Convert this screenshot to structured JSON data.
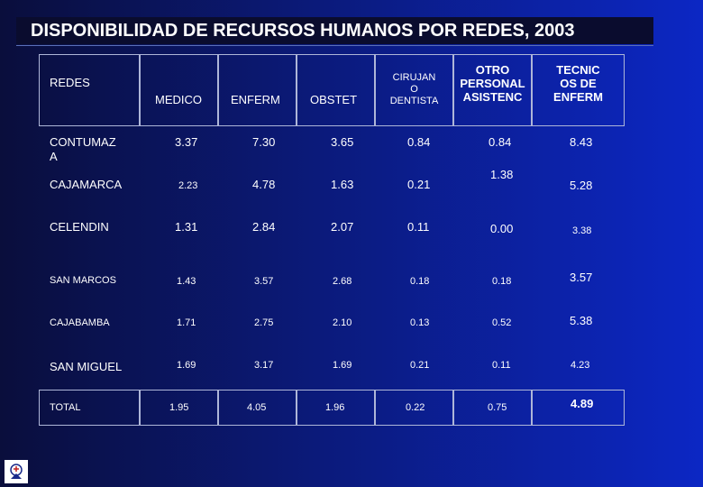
{
  "title": "DISPONIBILIDAD DE RECURSOS HUMANOS POR REDES, 2003",
  "headers": {
    "redes": "REDES",
    "medico": "MEDICO",
    "enferm": "ENFERM",
    "obstet": "OBSTET",
    "cirujan": [
      "CIRUJAN",
      "O",
      "DENTISTA"
    ],
    "otro": [
      "OTRO",
      "PERSONAL",
      "ASISTENC"
    ],
    "tecnic": [
      "TECNIC",
      "OS DE",
      "ENFERM"
    ]
  },
  "rows": [
    {
      "name": "CONTUMAZ A",
      "vals": [
        "3.37",
        "7.30",
        "3.65",
        "0.84",
        "0.84",
        "8.43"
      ]
    },
    {
      "name": "CAJAMARCA",
      "vals": [
        "2.23",
        "4.78",
        "1.63",
        "0.21",
        "1.38",
        "5.28"
      ]
    },
    {
      "name": "CELENDIN",
      "vals": [
        "1.31",
        "2.84",
        "2.07",
        "0.11",
        "0.00",
        "3.38"
      ]
    },
    {
      "name": "SAN MARCOS",
      "vals": [
        "1.43",
        "3.57",
        "2.68",
        "0.18",
        "0.18",
        "3.57"
      ]
    },
    {
      "name": "CAJABAMBA",
      "vals": [
        "1.71",
        "2.75",
        "2.10",
        "0.13",
        "0.52",
        "5.38"
      ]
    },
    {
      "name": "SAN MIGUEL",
      "vals": [
        "1.69",
        "3.17",
        "1.69",
        "0.21",
        "0.11",
        "4.23"
      ]
    }
  ],
  "total": {
    "name": "TOTAL",
    "vals": [
      "1.95",
      "4.05",
      "1.96",
      "0.22",
      "0.75",
      "4.89"
    ]
  },
  "logo_icon": "institution-logo-icon"
}
